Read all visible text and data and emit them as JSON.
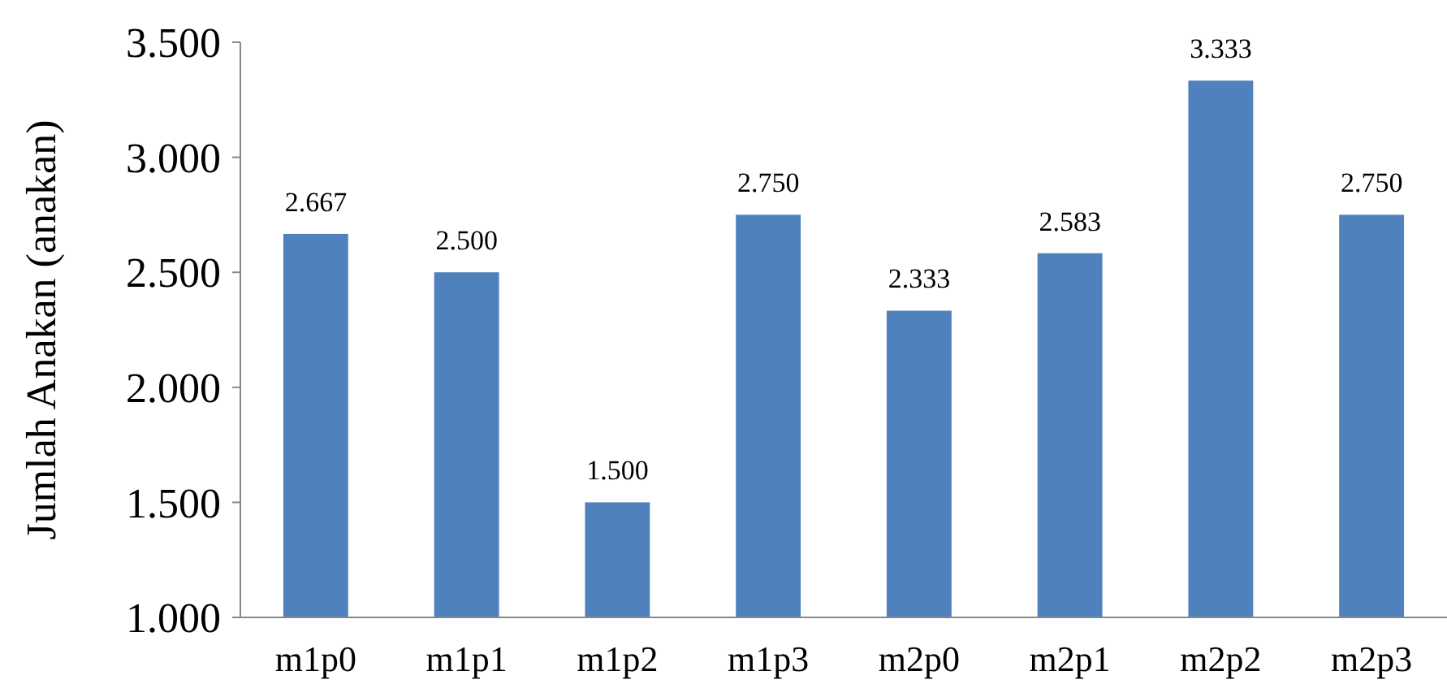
{
  "chart_data": {
    "type": "bar",
    "ylabel": "Jumlah Anakan (anakan)",
    "categories": [
      "m1p0",
      "m1p1",
      "m1p2",
      "m1p3",
      "m2p0",
      "m2p1",
      "m2p2",
      "m2p3"
    ],
    "values": [
      2.667,
      2.5,
      1.5,
      2.75,
      2.333,
      2.583,
      3.333,
      2.75
    ],
    "value_labels": [
      "2.667",
      "2.500",
      "1.500",
      "2.750",
      "2.333",
      "2.583",
      "3.333",
      "2.750"
    ],
    "color": "#4f81bd",
    "ylim": [
      1,
      3.5
    ],
    "yticks": [
      {
        "value": 1,
        "label": "1.000"
      },
      {
        "value": 1.5,
        "label": "1.500"
      },
      {
        "value": 2,
        "label": "2.000"
      },
      {
        "value": 2.5,
        "label": "2.500"
      },
      {
        "value": 3,
        "label": "3.000"
      },
      {
        "value": 3.5,
        "label": "3.500"
      }
    ],
    "grid": false
  }
}
